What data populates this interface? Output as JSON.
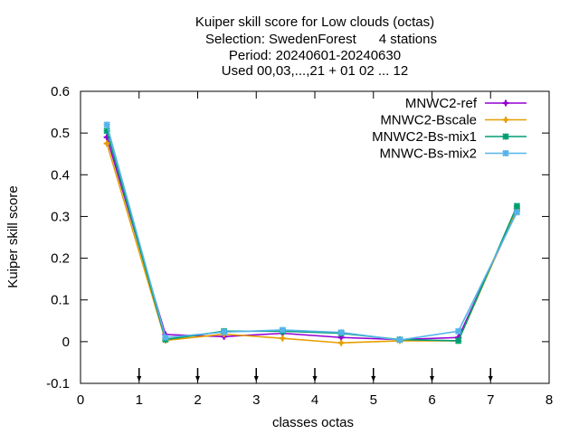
{
  "chart_data": {
    "type": "line",
    "title_lines": [
      "Kuiper skill score  for Low clouds (octas)",
      "Selection: SwedenForest      4 stations",
      "Period: 20240601-20240630",
      "Used 00,03,...,21 + 01 02 ... 12"
    ],
    "xlabel": "classes octas",
    "ylabel": "Kuiper skill score",
    "xlim": [
      0,
      8
    ],
    "ylim": [
      -0.1,
      0.6
    ],
    "x_ticks": [
      "0",
      "1",
      "2",
      "3",
      "4",
      "5",
      "6",
      "7",
      "8"
    ],
    "y_ticks": [
      "-0.1",
      "0",
      "0.1",
      "0.2",
      "0.3",
      "0.4",
      "0.5",
      "0.6"
    ],
    "class_markers_x": [
      1,
      2,
      3,
      4,
      5,
      6,
      7
    ],
    "grid": false,
    "legend_position": "top-right",
    "x": [
      0.45,
      1.45,
      2.45,
      3.45,
      4.45,
      5.45,
      6.45,
      7.45
    ],
    "series": [
      {
        "name": "MNWC2-ref",
        "color": "#9400d3",
        "marker": "plus",
        "values": [
          0.49,
          0.017,
          0.012,
          0.02,
          0.01,
          0.005,
          0.01,
          0.315
        ]
      },
      {
        "name": "MNWC2-Bscale",
        "color": "#e69f00",
        "marker": "plus",
        "values": [
          0.475,
          0.003,
          0.018,
          0.008,
          -0.003,
          0.002,
          0.002,
          0.32
        ]
      },
      {
        "name": "MNWC2-Bs-mix1",
        "color": "#009e73",
        "marker": "star",
        "values": [
          0.505,
          0.005,
          0.025,
          0.025,
          0.02,
          0.005,
          0.002,
          0.325
        ]
      },
      {
        "name": "MNWC-Bs-mix2",
        "color": "#56b4e9",
        "marker": "star",
        "values": [
          0.52,
          0.01,
          0.023,
          0.028,
          0.022,
          0.004,
          0.025,
          0.31
        ]
      }
    ]
  }
}
